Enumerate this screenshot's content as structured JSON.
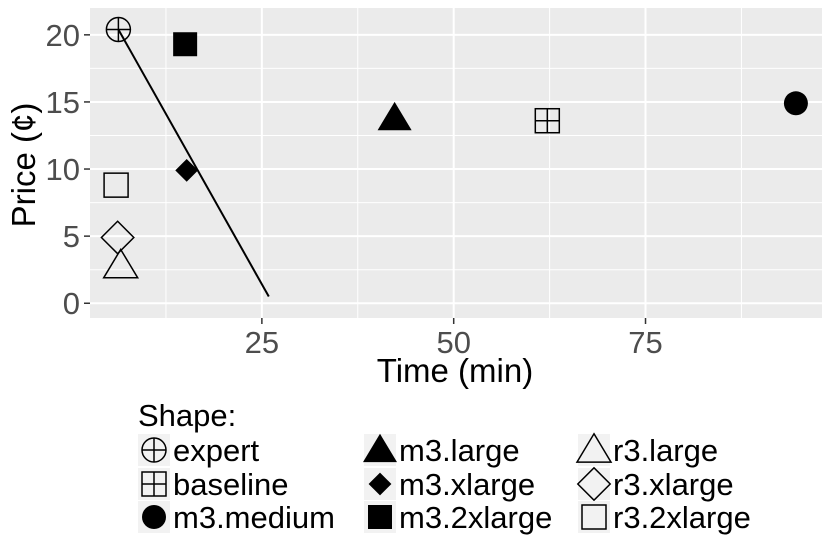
{
  "chart_data": {
    "type": "scatter",
    "title": "",
    "xlabel": "Time (min)",
    "ylabel": "Price (¢)",
    "xlim": [
      2.6,
      98
    ],
    "ylim": [
      -1.1,
      22
    ],
    "x_ticks": [
      25,
      50,
      75
    ],
    "x_tick_labels": [
      "25",
      "50",
      "75"
    ],
    "y_ticks": [
      0,
      5,
      10,
      15,
      20
    ],
    "y_tick_labels": [
      "0",
      "5",
      "10",
      "15",
      "20"
    ],
    "grid": true,
    "legend_title": "Shape:",
    "legend_position": "bottom",
    "series": [
      {
        "name": "expert",
        "shape": "circle-plus",
        "x": 6.3,
        "y": 20.4
      },
      {
        "name": "baseline",
        "shape": "square-plus",
        "x": 62.2,
        "y": 13.6
      },
      {
        "name": "m3.medium",
        "shape": "filled-circle",
        "x": 94.6,
        "y": 14.9
      },
      {
        "name": "m3.large",
        "shape": "filled-triangle",
        "x": 42.3,
        "y": 13.8
      },
      {
        "name": "m3.xlarge",
        "shape": "filled-diamond",
        "x": 15.2,
        "y": 9.9
      },
      {
        "name": "m3.2xlarge",
        "shape": "filled-square",
        "x": 15.0,
        "y": 19.3
      },
      {
        "name": "r3.large",
        "shape": "open-triangle",
        "x": 6.6,
        "y": 2.8
      },
      {
        "name": "r3.xlarge",
        "shape": "open-diamond",
        "x": 6.2,
        "y": 4.9
      },
      {
        "name": "r3.2xlarge",
        "shape": "open-square",
        "x": 6.0,
        "y": 8.8
      }
    ],
    "annotation_line": {
      "x": [
        6.3,
        25.9
      ],
      "y": [
        20.4,
        0.5
      ]
    },
    "colors": {
      "panel": "#ebebeb",
      "grid_major": "#ffffff",
      "marks": "#000000"
    }
  }
}
